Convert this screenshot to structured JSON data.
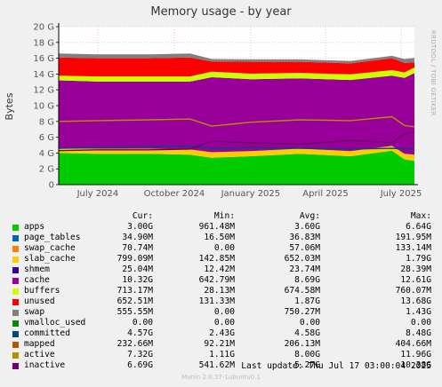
{
  "title": "Memory usage - by year",
  "side_label": "RRDTOOL / TOBI OETIKER",
  "footer": {
    "last_update": "Last update: Thu Jul 17 03:00:04 2025",
    "munin": "Munin 2.0.37-1ubuntu0.1"
  },
  "legend_header": {
    "cur": "Cur:",
    "min": "Min:",
    "avg": "Avg:",
    "max": "Max:"
  },
  "legend": [
    {
      "name": "apps",
      "color": "#00cc00",
      "cur": "3.00G",
      "min": "961.48M",
      "avg": "3.60G",
      "max": "6.64G"
    },
    {
      "name": "page_tables",
      "color": "#0066b3",
      "cur": "34.90M",
      "min": "16.50M",
      "avg": "36.83M",
      "max": "191.95M"
    },
    {
      "name": "swap_cache",
      "color": "#ff8000",
      "cur": "70.74M",
      "min": "0.00",
      "avg": "57.06M",
      "max": "133.14M"
    },
    {
      "name": "slab_cache",
      "color": "#ffcc00",
      "cur": "799.09M",
      "min": "142.85M",
      "avg": "652.03M",
      "max": "1.79G"
    },
    {
      "name": "shmem",
      "color": "#330099",
      "cur": "25.04M",
      "min": "12.42M",
      "avg": "23.74M",
      "max": "28.39M"
    },
    {
      "name": "cache",
      "color": "#990099",
      "cur": "10.32G",
      "min": "642.79M",
      "avg": "8.69G",
      "max": "12.61G"
    },
    {
      "name": "buffers",
      "color": "#ccff00",
      "cur": "713.17M",
      "min": "28.13M",
      "avg": "674.58M",
      "max": "760.07M"
    },
    {
      "name": "unused",
      "color": "#ff0000",
      "cur": "652.51M",
      "min": "131.33M",
      "avg": "1.87G",
      "max": "13.68G"
    },
    {
      "name": "swap",
      "color": "#808080",
      "cur": "555.55M",
      "min": "0.00",
      "avg": "750.27M",
      "max": "1.43G"
    },
    {
      "name": "vmalloc_used",
      "color": "#008f00",
      "cur": "0.00",
      "min": "0.00",
      "avg": "0.00",
      "max": "0.00"
    },
    {
      "name": "committed",
      "color": "#00487d",
      "cur": "4.57G",
      "min": "2.43G",
      "avg": "4.58G",
      "max": "8.48G"
    },
    {
      "name": "mapped",
      "color": "#b35a00",
      "cur": "232.66M",
      "min": "92.21M",
      "avg": "206.13M",
      "max": "404.66M"
    },
    {
      "name": "active",
      "color": "#b38f00",
      "cur": "7.32G",
      "min": "1.11G",
      "avg": "8.00G",
      "max": "11.96G"
    },
    {
      "name": "inactive",
      "color": "#6b006b",
      "cur": "6.69G",
      "min": "541.62M",
      "avg": "5.27G",
      "max": "10.38G"
    }
  ],
  "chart_data": {
    "type": "area",
    "title": "Memory usage - by year",
    "ylabel": "Bytes",
    "ylim": [
      0,
      20
    ],
    "y_unit": "G",
    "yticks": [
      0,
      2,
      4,
      6,
      8,
      10,
      12,
      14,
      16,
      18,
      20
    ],
    "ytick_labels": [
      "0",
      "2 G",
      "4 G",
      "6 G",
      "8 G",
      "10 G",
      "12 G",
      "14 G",
      "16 G",
      "18 G",
      "20 G"
    ],
    "x_range": [
      "2024-05-15",
      "2025-07-17"
    ],
    "xticks": [
      {
        "label": "July 2024",
        "date": "2024-07-01"
      },
      {
        "label": "October 2024",
        "date": "2024-10-01"
      },
      {
        "label": "January 2025",
        "date": "2025-01-01"
      },
      {
        "label": "April 2025",
        "date": "2025-04-01"
      },
      {
        "label": "July 2025",
        "date": "2025-07-01"
      }
    ],
    "x": [
      "2024-05-15",
      "2024-07-01",
      "2024-09-01",
      "2024-10-20",
      "2024-11-15",
      "2025-01-01",
      "2025-03-01",
      "2025-05-01",
      "2025-06-20",
      "2025-07-05",
      "2025-07-17"
    ],
    "stacked_series": [
      {
        "name": "apps",
        "color": "#00cc00",
        "values": [
          4.0,
          3.9,
          3.9,
          3.8,
          3.4,
          3.6,
          3.9,
          3.6,
          4.3,
          3.2,
          3.0
        ]
      },
      {
        "name": "slab_cache",
        "color": "#ffcc00",
        "values": [
          0.6,
          0.65,
          0.65,
          0.65,
          0.7,
          0.65,
          0.65,
          0.65,
          0.6,
          0.7,
          0.8
        ]
      },
      {
        "name": "cache",
        "color": "#990099",
        "values": [
          8.6,
          8.5,
          8.5,
          8.6,
          9.5,
          9.1,
          8.9,
          9.0,
          8.9,
          9.6,
          10.32
        ]
      },
      {
        "name": "buffers",
        "color": "#ccff00",
        "values": [
          0.6,
          0.65,
          0.65,
          0.65,
          0.7,
          0.7,
          0.7,
          0.7,
          0.7,
          0.7,
          0.71
        ]
      },
      {
        "name": "unused",
        "color": "#ff0000",
        "values": [
          2.3,
          2.3,
          2.3,
          2.4,
          1.3,
          1.5,
          1.4,
          1.4,
          1.5,
          1.2,
          0.65
        ]
      },
      {
        "name": "swap",
        "color": "#808080",
        "values": [
          0.5,
          0.5,
          0.5,
          0.5,
          0.3,
          0.3,
          0.3,
          0.3,
          0.3,
          0.5,
          0.56
        ]
      }
    ],
    "line_series": [
      {
        "name": "committed",
        "color": "#00487d",
        "values": [
          4.6,
          4.7,
          4.8,
          4.9,
          4.6,
          4.7,
          4.6,
          4.5,
          4.6,
          4.5,
          4.57
        ]
      },
      {
        "name": "active",
        "color": "#b38f00",
        "values": [
          8.0,
          8.1,
          8.2,
          8.3,
          7.4,
          7.9,
          8.2,
          8.1,
          8.6,
          7.5,
          7.32
        ]
      },
      {
        "name": "inactive",
        "color": "#6b006b",
        "values": [
          4.3,
          4.4,
          4.4,
          4.5,
          5.5,
          5.3,
          5.1,
          5.6,
          5.3,
          6.4,
          6.69
        ]
      }
    ]
  }
}
